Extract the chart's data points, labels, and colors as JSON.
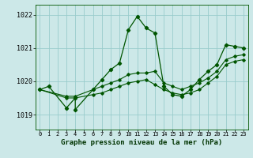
{
  "title": "Graphe pression niveau de la mer (hPa)",
  "bg_color": "#cce8e8",
  "grid_color": "#99cccc",
  "line_color": "#005500",
  "x_ticks": [
    0,
    1,
    2,
    3,
    4,
    5,
    6,
    7,
    8,
    9,
    10,
    11,
    12,
    13,
    14,
    15,
    16,
    17,
    18,
    19,
    20,
    21,
    22,
    23
  ],
  "xlim": [
    -0.5,
    23.5
  ],
  "ylim": [
    1018.55,
    1022.3
  ],
  "y_ticks": [
    1019,
    1020,
    1021,
    1022
  ],
  "series_main": [
    [
      0,
      1019.75
    ],
    [
      1,
      1019.85
    ],
    [
      3,
      1019.2
    ],
    [
      4,
      1019.5
    ],
    [
      4,
      1019.15
    ],
    [
      6,
      1019.75
    ],
    [
      7,
      1020.05
    ],
    [
      8,
      1020.35
    ],
    [
      9,
      1020.55
    ],
    [
      10,
      1021.55
    ],
    [
      11,
      1021.95
    ],
    [
      12,
      1021.6
    ],
    [
      13,
      1021.45
    ],
    [
      14,
      1019.85
    ],
    [
      15,
      1019.6
    ],
    [
      16,
      1019.55
    ],
    [
      17,
      1019.75
    ],
    [
      18,
      1020.05
    ],
    [
      19,
      1020.3
    ],
    [
      20,
      1020.5
    ],
    [
      21,
      1021.1
    ],
    [
      22,
      1021.05
    ],
    [
      23,
      1021.0
    ]
  ],
  "series_line2": [
    [
      0,
      1019.75
    ],
    [
      3,
      1019.55
    ],
    [
      4,
      1019.55
    ],
    [
      6,
      1019.75
    ],
    [
      7,
      1019.85
    ],
    [
      8,
      1019.95
    ],
    [
      9,
      1020.05
    ],
    [
      10,
      1020.2
    ],
    [
      11,
      1020.25
    ],
    [
      12,
      1020.25
    ],
    [
      13,
      1020.3
    ],
    [
      14,
      1019.95
    ],
    [
      15,
      1019.85
    ],
    [
      16,
      1019.75
    ],
    [
      17,
      1019.85
    ],
    [
      18,
      1019.95
    ],
    [
      19,
      1020.1
    ],
    [
      20,
      1020.3
    ],
    [
      21,
      1020.65
    ],
    [
      22,
      1020.75
    ],
    [
      23,
      1020.8
    ]
  ],
  "series_line3": [
    [
      0,
      1019.75
    ],
    [
      3,
      1019.5
    ],
    [
      4,
      1019.5
    ],
    [
      6,
      1019.6
    ],
    [
      7,
      1019.65
    ],
    [
      8,
      1019.75
    ],
    [
      9,
      1019.85
    ],
    [
      10,
      1019.95
    ],
    [
      11,
      1020.0
    ],
    [
      12,
      1020.05
    ],
    [
      13,
      1019.9
    ],
    [
      14,
      1019.75
    ],
    [
      15,
      1019.65
    ],
    [
      16,
      1019.6
    ],
    [
      17,
      1019.65
    ],
    [
      18,
      1019.75
    ],
    [
      19,
      1019.95
    ],
    [
      20,
      1020.15
    ],
    [
      21,
      1020.5
    ],
    [
      22,
      1020.6
    ],
    [
      23,
      1020.65
    ]
  ]
}
